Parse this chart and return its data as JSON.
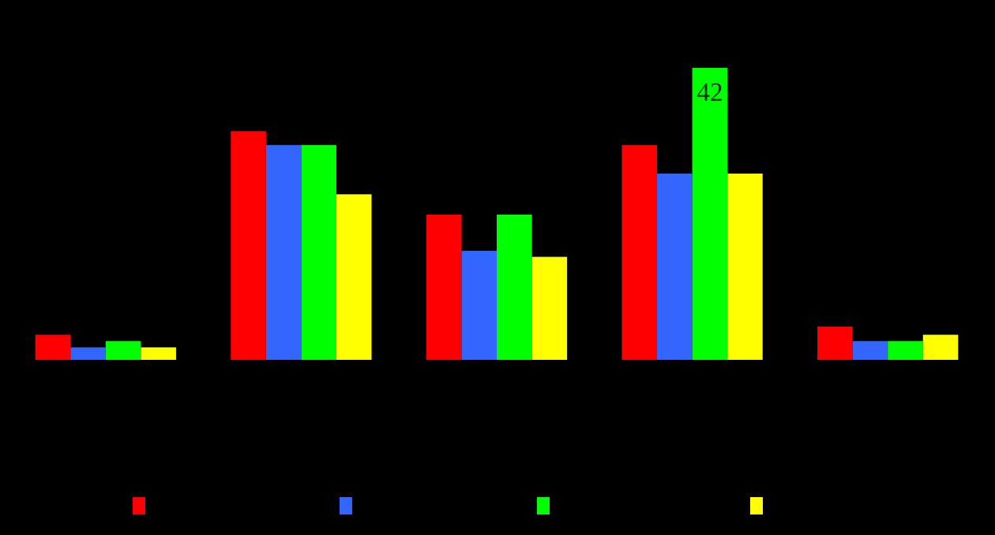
{
  "chart_data": {
    "type": "bar",
    "categories": [
      null,
      null,
      null,
      null,
      null
    ],
    "series": [
      {
        "color": "#ff0000",
        "values": [
          3.6,
          32.9,
          20.9,
          30.9,
          4.8
        ],
        "value_labels": [
          null,
          null,
          null,
          null,
          null
        ]
      },
      {
        "color": "#3366ff",
        "values": [
          1.8,
          30.9,
          15.7,
          26.8,
          2.7
        ],
        "value_labels": [
          null,
          null,
          null,
          null,
          null
        ]
      },
      {
        "color": "#00ff00",
        "values": [
          2.7,
          30.9,
          20.9,
          42,
          2.7
        ],
        "value_labels": [
          null,
          null,
          null,
          "42",
          null
        ]
      },
      {
        "color": "#ffff00",
        "values": [
          1.8,
          23.8,
          14.8,
          26.8,
          3.6
        ],
        "value_labels": [
          null,
          null,
          null,
          null,
          null
        ]
      }
    ],
    "grid": false
  }
}
